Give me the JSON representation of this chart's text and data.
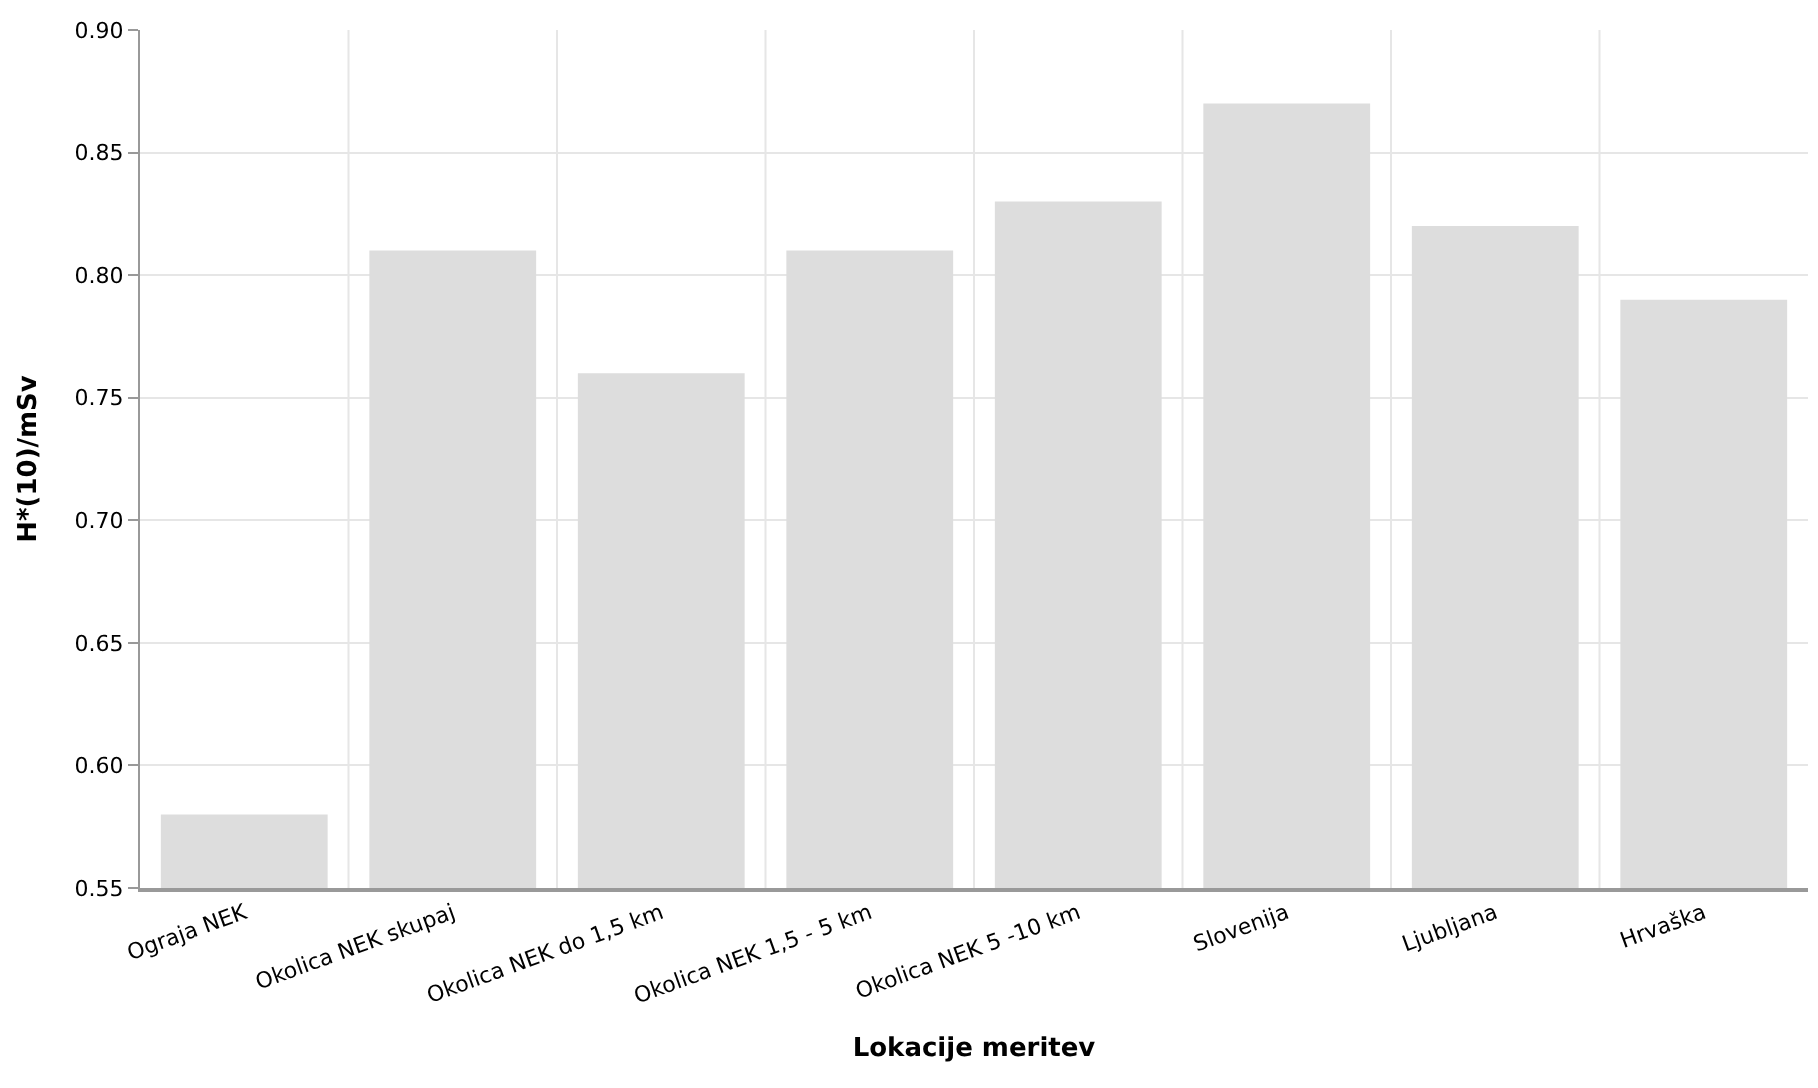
{
  "chart_data": {
    "type": "bar",
    "xlabel": "Lokacije meritev",
    "ylabel": "H*(10)/mSv",
    "categories": [
      "Ograja NEK",
      "Okolica NEK skupaj",
      "Okolica NEK do 1,5 km",
      "Okolica NEK 1,5 - 5 km",
      "Okolica NEK 5 -10 km",
      "Slovenija",
      "Ljubljana",
      "Hrvaška"
    ],
    "values": [
      0.58,
      0.81,
      0.76,
      0.81,
      0.83,
      0.87,
      0.82,
      0.79
    ],
    "color": "#dddddd",
    "ylim": [
      0.55,
      0.9
    ],
    "yticks": [
      {
        "value": 0.55,
        "label": "0.55"
      },
      {
        "value": 0.6,
        "label": "0.60"
      },
      {
        "value": 0.65,
        "label": "0.65"
      },
      {
        "value": 0.7,
        "label": "0.70"
      },
      {
        "value": 0.75,
        "label": "0.75"
      },
      {
        "value": 0.8,
        "label": "0.80"
      },
      {
        "value": 0.85,
        "label": "0.85"
      },
      {
        "value": 0.9,
        "label": "0.90"
      }
    ],
    "grid": true
  }
}
